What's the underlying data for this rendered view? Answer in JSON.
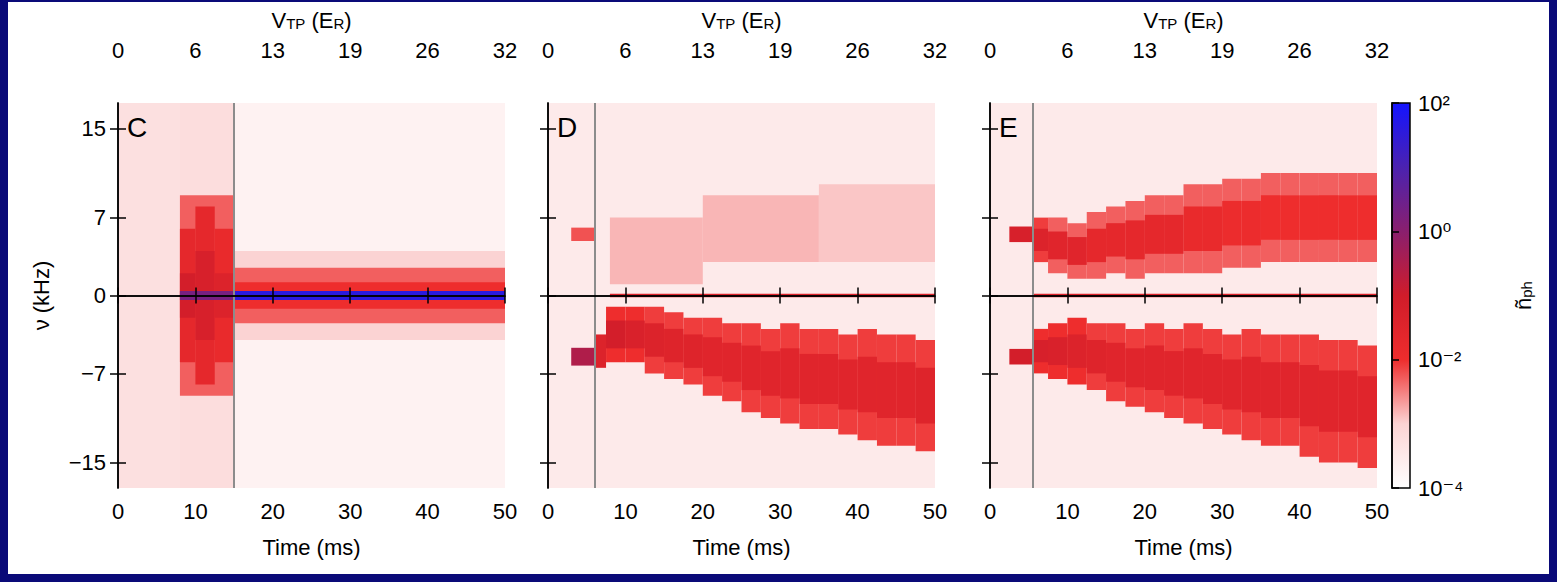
{
  "chart_data": {
    "type": "heatmap",
    "xlabel": "Time (ms)",
    "ylabel": "ν (kHz)",
    "x2label": [
      {
        "text": "V"
      },
      {
        "text": "TP",
        "sub": true
      },
      {
        "text": " ("
      },
      {
        "text": "E"
      },
      {
        "text": "R",
        "sub": true
      },
      {
        "text": ")"
      }
    ],
    "xlim": [
      0,
      50
    ],
    "xticks": [
      0,
      10,
      20,
      30,
      40,
      50
    ],
    "x2lim": [
      0,
      32
    ],
    "x2ticks": [
      0,
      {
        "value": 6.4,
        "label": "6"
      },
      {
        "value": 12.8,
        "label": "13"
      },
      {
        "value": 19.2,
        "label": "19"
      },
      {
        "value": 25.6,
        "label": "26"
      },
      32
    ],
    "ylim": [
      -17.3,
      17.3
    ],
    "yticks": [
      {
        "value": -15,
        "label": "−15"
      },
      {
        "value": -7,
        "label": "−7"
      },
      0,
      7,
      15
    ],
    "colorbar": {
      "label": [
        {
          "text": "ñ"
        },
        {
          "text": "ph",
          "sub": true
        }
      ],
      "range": [
        0.0001,
        100
      ],
      "ticks": [
        {
          "value": 0.0001,
          "label": "10⁻⁴"
        },
        {
          "value": 0.01,
          "label": "10⁻²"
        },
        {
          "value": 1,
          "label": "10⁰"
        },
        {
          "value": 100,
          "label": "10²"
        }
      ],
      "log": true
    },
    "panels": [
      {
        "label": "C",
        "vline": 15,
        "cells": [
          [
            0,
            50,
            -17.3,
            17.3,
            0.0002
          ],
          [
            0,
            8,
            -17.3,
            17.3,
            0.0005
          ],
          [
            8,
            15,
            -17.3,
            17.3,
            0.0006
          ],
          [
            15,
            50,
            -4,
            4,
            0.001
          ],
          [
            15,
            50,
            -2.5,
            2.5,
            0.005
          ],
          [
            15,
            50,
            -1.2,
            1.2,
            0.01
          ],
          [
            8,
            15,
            -9,
            9,
            0.005
          ],
          [
            8,
            10,
            -6,
            6,
            0.02
          ],
          [
            10,
            12.5,
            -8,
            8,
            0.02
          ],
          [
            10,
            12.5,
            -4,
            4,
            0.06
          ],
          [
            8,
            10,
            -2,
            2,
            0.08
          ],
          [
            12.5,
            15,
            -6,
            6,
            0.015
          ],
          [
            12.5,
            15,
            -2,
            2,
            0.04
          ],
          [
            8,
            15,
            -0.4,
            0.4,
            2
          ],
          [
            15,
            50,
            -0.4,
            0.4,
            40
          ]
        ]
      },
      {
        "label": "D",
        "vline": 6,
        "cells": [
          [
            0,
            50,
            -17.3,
            17.3,
            0.0003
          ],
          [
            8,
            20,
            1,
            7,
            0.0015
          ],
          [
            20,
            35,
            3,
            9,
            0.0015
          ],
          [
            35,
            50,
            3,
            10,
            0.0012
          ],
          [
            3,
            6,
            4.9,
            6.1,
            0.006
          ],
          [
            3,
            6,
            -6.3,
            -4.7,
            0.3
          ],
          [
            6,
            7.5,
            -6.5,
            -3.5,
            0.04
          ],
          [
            7.5,
            10,
            -6,
            -1,
            0.01
          ],
          [
            10,
            12.5,
            -6,
            -1,
            0.01
          ],
          [
            12.5,
            15,
            -7,
            -1,
            0.008
          ],
          [
            15,
            17.5,
            -7.5,
            -1.5,
            0.008
          ],
          [
            17.5,
            20,
            -8,
            -2,
            0.008
          ],
          [
            20,
            22.5,
            -9,
            -2,
            0.008
          ],
          [
            22.5,
            25,
            -9.5,
            -2.5,
            0.008
          ],
          [
            25,
            27.5,
            -10.5,
            -2.5,
            0.008
          ],
          [
            27.5,
            30,
            -11,
            -3,
            0.008
          ],
          [
            30,
            32.5,
            -11.5,
            -2.5,
            0.008
          ],
          [
            32.5,
            35,
            -12,
            -3,
            0.008
          ],
          [
            35,
            37.5,
            -12,
            -3,
            0.008
          ],
          [
            37.5,
            40,
            -12.5,
            -3.5,
            0.008
          ],
          [
            40,
            42.5,
            -13,
            -3,
            0.008
          ],
          [
            42.5,
            45,
            -13.5,
            -3.5,
            0.008
          ],
          [
            45,
            47.5,
            -13.5,
            -3.5,
            0.008
          ],
          [
            47.5,
            50,
            -14,
            -4,
            0.008
          ],
          [
            7.5,
            10,
            -4.75,
            -2.25,
            0.08
          ],
          [
            10,
            12.5,
            -4.75,
            -2.25,
            0.05
          ],
          [
            12.5,
            15,
            -5.5,
            -2.5,
            0.04
          ],
          [
            15,
            17.5,
            -6,
            -3,
            0.035
          ],
          [
            17.5,
            20,
            -6.5,
            -3.5,
            0.035
          ],
          [
            20,
            22.5,
            -7.25,
            -3.75,
            0.03
          ],
          [
            22.5,
            25,
            -7.75,
            -4.25,
            0.03
          ],
          [
            25,
            27.5,
            -8.5,
            -4.5,
            0.03
          ],
          [
            27.5,
            30,
            -9,
            -5,
            0.03
          ],
          [
            30,
            32.5,
            -9.25,
            -4.75,
            0.03
          ],
          [
            32.5,
            35,
            -9.75,
            -5.25,
            0.03
          ],
          [
            35,
            37.5,
            -9.75,
            -5.25,
            0.03
          ],
          [
            37.5,
            40,
            -10.25,
            -5.75,
            0.03
          ],
          [
            40,
            42.5,
            -10.5,
            -5.5,
            0.03
          ],
          [
            42.5,
            45,
            -11,
            -6,
            0.03
          ],
          [
            45,
            47.5,
            -11,
            -6,
            0.03
          ],
          [
            47.5,
            50,
            -11.5,
            -6.5,
            0.035
          ],
          [
            8,
            50,
            -0.15,
            0.15,
            0.04
          ]
        ]
      },
      {
        "label": "E",
        "vline": 5.5,
        "cells": [
          [
            0,
            50,
            -17.3,
            17.3,
            0.0003
          ],
          [
            2.5,
            5.5,
            -6.2,
            -4.8,
            0.08
          ],
          [
            2.5,
            5.5,
            4.8,
            6.2,
            0.06
          ],
          [
            5.5,
            7.5,
            -7,
            -3,
            0.01
          ],
          [
            7.5,
            10,
            -7.5,
            -2.5,
            0.01
          ],
          [
            10,
            12.5,
            -8,
            -2,
            0.01
          ],
          [
            12.5,
            15,
            -8.5,
            -2.5,
            0.008
          ],
          [
            15,
            17.5,
            -9.5,
            -2.5,
            0.008
          ],
          [
            17.5,
            20,
            -10,
            -3,
            0.008
          ],
          [
            20,
            22.5,
            -10.5,
            -2.5,
            0.008
          ],
          [
            22.5,
            25,
            -11,
            -3,
            0.008
          ],
          [
            25,
            27.5,
            -11.5,
            -2.5,
            0.008
          ],
          [
            27.5,
            30,
            -12,
            -3,
            0.008
          ],
          [
            30,
            32.5,
            -12.5,
            -3.5,
            0.008
          ],
          [
            32.5,
            35,
            -13,
            -3,
            0.008
          ],
          [
            35,
            37.5,
            -13.5,
            -3.5,
            0.008
          ],
          [
            37.5,
            40,
            -13.5,
            -3.5,
            0.008
          ],
          [
            40,
            42.5,
            -14.5,
            -3.5,
            0.008
          ],
          [
            42.5,
            45,
            -15,
            -4,
            0.008
          ],
          [
            45,
            47.5,
            -15,
            -4,
            0.008
          ],
          [
            47.5,
            50,
            -15.5,
            -4.5,
            0.008
          ],
          [
            5.5,
            7.5,
            -6,
            -4,
            0.06
          ],
          [
            7.5,
            10,
            -6.25,
            -3.75,
            0.05
          ],
          [
            10,
            12.5,
            -6.5,
            -3.5,
            0.04
          ],
          [
            12.5,
            15,
            -7,
            -4,
            0.035
          ],
          [
            15,
            17.5,
            -7.75,
            -4.25,
            0.03
          ],
          [
            17.5,
            20,
            -8.25,
            -4.75,
            0.03
          ],
          [
            20,
            22.5,
            -8.5,
            -4.5,
            0.03
          ],
          [
            22.5,
            25,
            -9,
            -5,
            0.03
          ],
          [
            25,
            27.5,
            -9.25,
            -4.75,
            0.03
          ],
          [
            27.5,
            30,
            -9.75,
            -5.25,
            0.03
          ],
          [
            30,
            32.5,
            -10.25,
            -5.75,
            0.03
          ],
          [
            32.5,
            35,
            -10.5,
            -5.5,
            0.03
          ],
          [
            35,
            37.5,
            -11,
            -6,
            0.03
          ],
          [
            37.5,
            40,
            -11,
            -6,
            0.03
          ],
          [
            40,
            42.5,
            -11.75,
            -6.25,
            0.03
          ],
          [
            42.5,
            45,
            -12.25,
            -6.75,
            0.03
          ],
          [
            45,
            47.5,
            -12.25,
            -6.75,
            0.03
          ],
          [
            47.5,
            50,
            -12.75,
            -7.25,
            0.03
          ],
          [
            5.5,
            7.5,
            3,
            7,
            0.008
          ],
          [
            7.5,
            10,
            2,
            7,
            0.005
          ],
          [
            10,
            12.5,
            1.5,
            6.5,
            0.005
          ],
          [
            12.5,
            15,
            1.5,
            7.5,
            0.005
          ],
          [
            15,
            17.5,
            2,
            8,
            0.005
          ],
          [
            17.5,
            20,
            1.5,
            8.5,
            0.005
          ],
          [
            20,
            22.5,
            2,
            9,
            0.005
          ],
          [
            22.5,
            25,
            2,
            9,
            0.005
          ],
          [
            25,
            27.5,
            2,
            10,
            0.005
          ],
          [
            27.5,
            30,
            2,
            10,
            0.005
          ],
          [
            30,
            32.5,
            2.5,
            10.5,
            0.005
          ],
          [
            32.5,
            35,
            2.5,
            10.5,
            0.005
          ],
          [
            35,
            37.5,
            3,
            11,
            0.005
          ],
          [
            37.5,
            40,
            3,
            11,
            0.005
          ],
          [
            40,
            42.5,
            3,
            11,
            0.005
          ],
          [
            42.5,
            45,
            3,
            11,
            0.005
          ],
          [
            45,
            47.5,
            3,
            11,
            0.005
          ],
          [
            47.5,
            50,
            3,
            11,
            0.005
          ],
          [
            5.5,
            7.5,
            4,
            6,
            0.04
          ],
          [
            7.5,
            10,
            3.25,
            5.75,
            0.03
          ],
          [
            10,
            12.5,
            2.75,
            5.25,
            0.03
          ],
          [
            12.5,
            15,
            3,
            6,
            0.02
          ],
          [
            15,
            17.5,
            3.5,
            6.5,
            0.02
          ],
          [
            17.5,
            20,
            3.25,
            6.75,
            0.02
          ],
          [
            20,
            22.5,
            3.75,
            7.25,
            0.02
          ],
          [
            22.5,
            25,
            3.75,
            7.25,
            0.02
          ],
          [
            25,
            27.5,
            4,
            8,
            0.015
          ],
          [
            27.5,
            30,
            4,
            8,
            0.015
          ],
          [
            30,
            32.5,
            4.5,
            8.5,
            0.012
          ],
          [
            32.5,
            35,
            4.5,
            8.5,
            0.012
          ],
          [
            35,
            37.5,
            5,
            9,
            0.01
          ],
          [
            37.5,
            40,
            5,
            9,
            0.01
          ],
          [
            40,
            42.5,
            5,
            9,
            0.01
          ],
          [
            42.5,
            45,
            5,
            9,
            0.01
          ],
          [
            45,
            47.5,
            5,
            9,
            0.01
          ],
          [
            47.5,
            50,
            5,
            9,
            0.01
          ],
          [
            5.5,
            50,
            -0.15,
            0.15,
            0.04
          ]
        ]
      }
    ]
  }
}
